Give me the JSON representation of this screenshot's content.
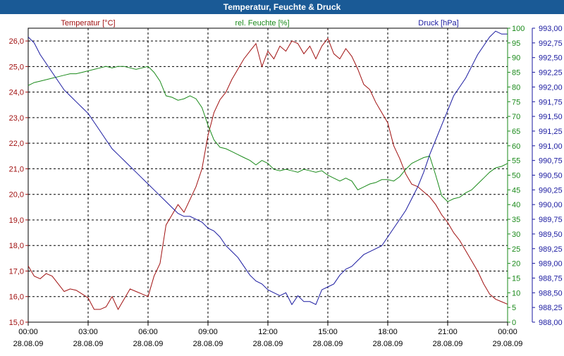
{
  "window": {
    "title": "Temperatur, Feuchte & Druck"
  },
  "chart_data": {
    "type": "line",
    "grid": true,
    "x_ticks": [
      {
        "time": "00:00",
        "date": "28.08.09"
      },
      {
        "time": "03:00",
        "date": "28.08.09"
      },
      {
        "time": "06:00",
        "date": "28.08.09"
      },
      {
        "time": "09:00",
        "date": "28.08.09"
      },
      {
        "time": "12:00",
        "date": "28.08.09"
      },
      {
        "time": "15:00",
        "date": "28.08.09"
      },
      {
        "time": "18:00",
        "date": "28.08.09"
      },
      {
        "time": "21:00",
        "date": "28.08.09"
      },
      {
        "time": "00:00",
        "date": "29.08.09"
      }
    ],
    "xlim_hours": [
      0,
      24
    ],
    "axes": {
      "temperature": {
        "label": "Temperatur [°C]",
        "color": "#a01010",
        "side": "left",
        "range": [
          15.0,
          26.5
        ],
        "ticks": [
          "15,0",
          "16,0",
          "17,0",
          "18,0",
          "19,0",
          "20,0",
          "21,0",
          "22,0",
          "23,0",
          "24,0",
          "25,0",
          "26,0"
        ]
      },
      "humidity": {
        "label": "rel. Feuchte [%]",
        "color": "#1a8a1a",
        "side": "right",
        "range": [
          0,
          100
        ],
        "ticks": [
          "0",
          "5",
          "10",
          "15",
          "20",
          "25",
          "30",
          "35",
          "40",
          "45",
          "50",
          "55",
          "60",
          "65",
          "70",
          "75",
          "80",
          "85",
          "90",
          "95",
          "100"
        ]
      },
      "pressure": {
        "label": "Druck [hPa]",
        "color": "#1a1aa0",
        "side": "right",
        "range": [
          988.0,
          993.0
        ],
        "ticks": [
          "988,00",
          "988,25",
          "988,50",
          "988,75",
          "989,00",
          "989,25",
          "989,50",
          "989,75",
          "990,00",
          "990,25",
          "990,50",
          "990,75",
          "991,00",
          "991,25",
          "991,50",
          "991,75",
          "992,00",
          "992,25",
          "992,50",
          "992,75",
          "993,00"
        ]
      }
    },
    "series": [
      {
        "name": "Temperatur [°C]",
        "axis": "temperature",
        "x": [
          0,
          0.3,
          0.6,
          0.9,
          1.2,
          1.5,
          1.8,
          2.1,
          2.4,
          2.7,
          3.0,
          3.3,
          3.6,
          3.9,
          4.2,
          4.5,
          4.8,
          5.1,
          5.4,
          5.7,
          6.0,
          6.3,
          6.6,
          6.9,
          7.2,
          7.5,
          7.8,
          8.1,
          8.4,
          8.7,
          9.0,
          9.3,
          9.6,
          9.9,
          10.2,
          10.5,
          10.8,
          11.1,
          11.4,
          11.7,
          12.0,
          12.3,
          12.6,
          12.9,
          13.2,
          13.5,
          13.8,
          14.1,
          14.4,
          14.7,
          15.0,
          15.3,
          15.6,
          15.9,
          16.2,
          16.5,
          16.8,
          17.1,
          17.4,
          17.7,
          18.0,
          18.3,
          18.6,
          18.9,
          19.2,
          19.5,
          19.8,
          20.1,
          20.4,
          20.7,
          21.0,
          21.3,
          21.6,
          21.9,
          22.2,
          22.5,
          22.8,
          23.1,
          23.4,
          23.7,
          24.0
        ],
        "values": [
          17.2,
          16.8,
          16.7,
          16.9,
          16.8,
          16.5,
          16.2,
          16.3,
          16.25,
          16.1,
          15.95,
          15.5,
          15.5,
          15.6,
          16.0,
          15.5,
          15.9,
          16.3,
          16.2,
          16.1,
          16.0,
          16.8,
          17.3,
          18.8,
          19.2,
          19.6,
          19.3,
          19.8,
          20.3,
          21.0,
          22.3,
          23.2,
          23.7,
          24.0,
          24.5,
          24.9,
          25.3,
          25.6,
          25.9,
          25.0,
          25.6,
          25.3,
          25.8,
          25.6,
          26.0,
          25.9,
          25.5,
          25.8,
          25.3,
          25.8,
          26.1,
          25.5,
          25.3,
          25.7,
          25.4,
          24.9,
          24.3,
          24.1,
          23.6,
          23.2,
          22.8,
          21.9,
          21.4,
          20.8,
          20.4,
          20.3,
          20.1,
          19.9,
          19.6,
          19.2,
          18.9,
          18.5,
          18.2,
          17.8,
          17.4,
          17.0,
          16.5,
          16.1,
          15.9,
          15.8,
          15.7
        ]
      },
      {
        "name": "rel. Feuchte [%]",
        "axis": "humidity",
        "x": [
          0,
          0.3,
          0.6,
          0.9,
          1.2,
          1.5,
          1.8,
          2.1,
          2.4,
          2.7,
          3.0,
          3.3,
          3.6,
          3.9,
          4.2,
          4.5,
          4.8,
          5.1,
          5.4,
          5.7,
          6.0,
          6.3,
          6.6,
          6.9,
          7.2,
          7.5,
          7.8,
          8.1,
          8.4,
          8.7,
          9.0,
          9.3,
          9.6,
          9.9,
          10.2,
          10.5,
          10.8,
          11.1,
          11.4,
          11.7,
          12.0,
          12.3,
          12.6,
          12.9,
          13.2,
          13.5,
          13.8,
          14.1,
          14.4,
          14.7,
          15.0,
          15.3,
          15.6,
          15.9,
          16.2,
          16.5,
          16.8,
          17.1,
          17.4,
          17.7,
          18.0,
          18.3,
          18.6,
          18.9,
          19.2,
          19.5,
          19.8,
          20.1,
          20.4,
          20.7,
          21.0,
          21.3,
          21.6,
          21.9,
          22.2,
          22.5,
          22.8,
          23.1,
          23.4,
          23.7,
          24.0
        ],
        "values": [
          80.5,
          81.5,
          82,
          82.5,
          83,
          83.5,
          84,
          84.5,
          84.5,
          85,
          85.5,
          86,
          86.5,
          87,
          86.5,
          87,
          87,
          86.5,
          86,
          86.5,
          87,
          85,
          82,
          77,
          76.5,
          75.5,
          76,
          77,
          76,
          73,
          67,
          62,
          59.5,
          59,
          58,
          57,
          56,
          55,
          53.5,
          55,
          54,
          52,
          51.5,
          52,
          51.5,
          51,
          52,
          51.5,
          51,
          51.5,
          50,
          49,
          48,
          49,
          48,
          45,
          46,
          47,
          47.5,
          48.5,
          48.5,
          48,
          49.5,
          52,
          54,
          55,
          56,
          56.5,
          50,
          43,
          41,
          42,
          42.5,
          44,
          45,
          47,
          49,
          51,
          52.5,
          53,
          54
        ]
      },
      {
        "name": "Druck [hPa]",
        "axis": "pressure",
        "x": [
          0,
          0.3,
          0.6,
          0.9,
          1.2,
          1.5,
          1.8,
          2.1,
          2.4,
          2.7,
          3.0,
          3.3,
          3.6,
          3.9,
          4.2,
          4.5,
          4.8,
          5.1,
          5.4,
          5.7,
          6.0,
          6.3,
          6.6,
          6.9,
          7.2,
          7.5,
          7.8,
          8.1,
          8.4,
          8.7,
          9.0,
          9.3,
          9.6,
          9.9,
          10.2,
          10.5,
          10.8,
          11.1,
          11.4,
          11.7,
          12.0,
          12.3,
          12.6,
          12.9,
          13.2,
          13.5,
          13.8,
          14.1,
          14.4,
          14.7,
          15.0,
          15.3,
          15.6,
          15.9,
          16.2,
          16.5,
          16.8,
          17.1,
          17.4,
          17.7,
          18.0,
          18.3,
          18.6,
          18.9,
          19.2,
          19.5,
          19.8,
          20.1,
          20.4,
          20.7,
          21.0,
          21.3,
          21.6,
          21.9,
          22.2,
          22.5,
          22.8,
          23.1,
          23.4,
          23.7,
          24.0
        ],
        "values": [
          992.85,
          992.75,
          992.55,
          992.4,
          992.25,
          992.1,
          991.95,
          991.85,
          991.75,
          991.65,
          991.55,
          991.4,
          991.25,
          991.1,
          990.95,
          990.85,
          990.75,
          990.65,
          990.55,
          990.45,
          990.35,
          990.25,
          990.15,
          990.05,
          989.95,
          989.85,
          989.8,
          989.8,
          989.75,
          989.7,
          989.6,
          989.55,
          989.45,
          989.3,
          989.2,
          989.1,
          988.95,
          988.8,
          988.7,
          988.65,
          988.55,
          988.5,
          988.45,
          988.5,
          988.3,
          988.45,
          988.35,
          988.35,
          988.3,
          988.55,
          988.6,
          988.65,
          988.8,
          988.9,
          988.95,
          989.05,
          989.15,
          989.2,
          989.25,
          989.3,
          989.45,
          989.6,
          989.75,
          989.9,
          990.1,
          990.3,
          990.55,
          990.85,
          991.1,
          991.35,
          991.6,
          991.85,
          992.0,
          992.15,
          992.35,
          992.55,
          992.7,
          992.85,
          992.95,
          992.9,
          992.9
        ]
      }
    ]
  }
}
